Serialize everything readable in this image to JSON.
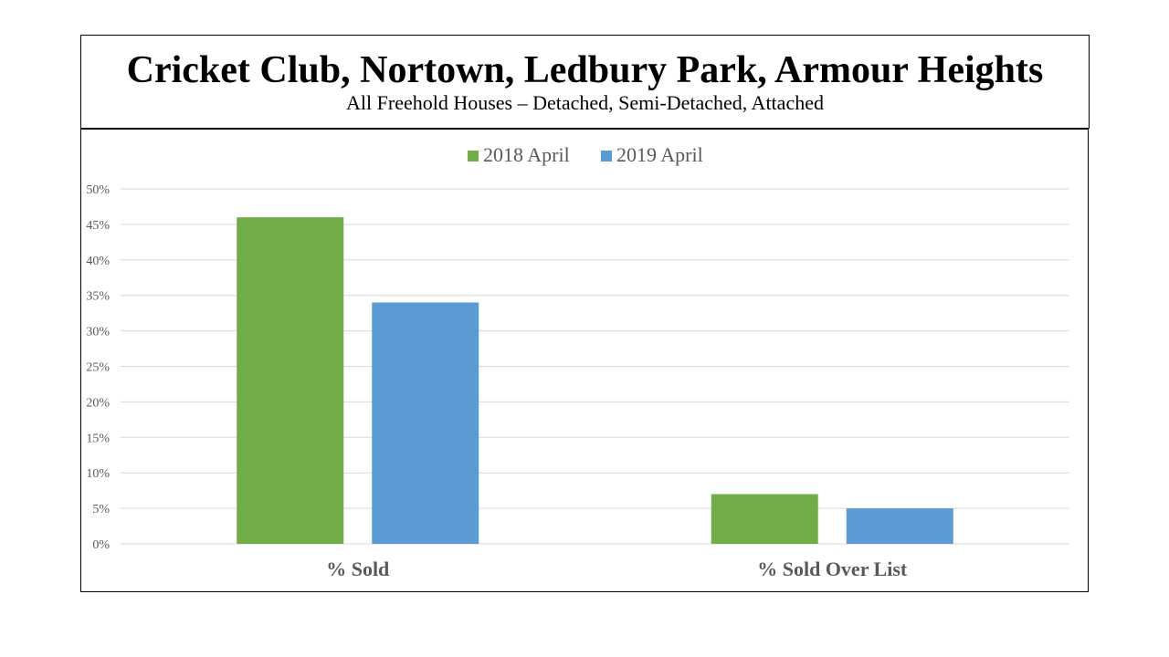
{
  "header": {
    "title": "Cricket Club, Nortown, Ledbury Park, Armour Heights",
    "subtitle": "All Freehold Houses – Detached, Semi-Detached, Attached"
  },
  "chart_data": {
    "type": "bar",
    "title": "Cricket Club, Nortown, Ledbury Park, Armour Heights",
    "subtitle": "All Freehold Houses – Detached, Semi-Detached, Attached",
    "categories": [
      "% Sold",
      "% Sold Over List"
    ],
    "series": [
      {
        "name": "2018 April",
        "color": "#70AD47",
        "values": [
          46,
          7
        ]
      },
      {
        "name": "2019 April",
        "color": "#5B9BD5",
        "values": [
          34,
          5
        ]
      }
    ],
    "y_ticks": [
      "0%",
      "5%",
      "10%",
      "15%",
      "20%",
      "25%",
      "30%",
      "35%",
      "40%",
      "45%",
      "50%"
    ],
    "ylim": [
      0,
      50
    ],
    "y_unit": "%",
    "grid": true,
    "legend": "top-center",
    "xlabel": "",
    "ylabel": "",
    "colors": {
      "gridline": "#D9D9D9",
      "axis_text": "#595959"
    }
  }
}
